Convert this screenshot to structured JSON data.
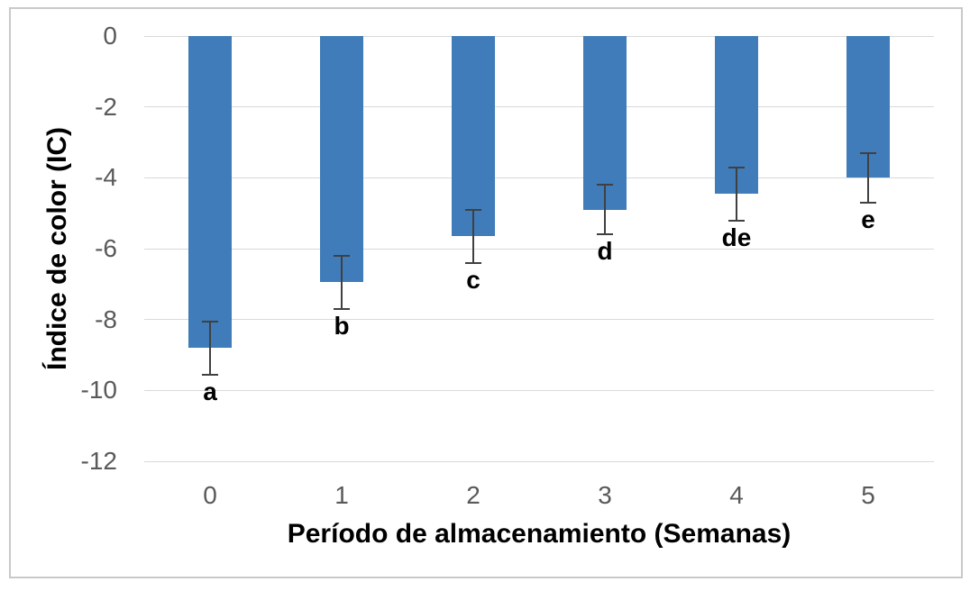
{
  "chart_data": {
    "type": "bar",
    "title": "",
    "categories": [
      "0",
      "1",
      "2",
      "3",
      "4",
      "5"
    ],
    "values": [
      -8.8,
      -6.95,
      -5.65,
      -4.9,
      -4.45,
      -4.0
    ],
    "error_bars": [
      0.75,
      0.75,
      0.75,
      0.7,
      0.75,
      0.7
    ],
    "sig_letters": [
      "a",
      "b",
      "c",
      "d",
      "de",
      "e"
    ],
    "xlabel": "Período de almacenamiento (Semanas)",
    "ylabel": "Índice de color (IC)",
    "ylim": [
      -12,
      0
    ],
    "yticks": [
      0,
      -2,
      -4,
      -6,
      -8,
      -10,
      -12
    ],
    "grid": true,
    "legend": "none",
    "colors": {
      "bar": "#3f7cb9",
      "grid": "#d9d9d9",
      "tick_label": "#595959",
      "axis_title": "#000000",
      "error_bar": "#404040",
      "sig_letter": "#000000",
      "frame_border": "#c9c9c9",
      "background": "#ffffff"
    }
  }
}
